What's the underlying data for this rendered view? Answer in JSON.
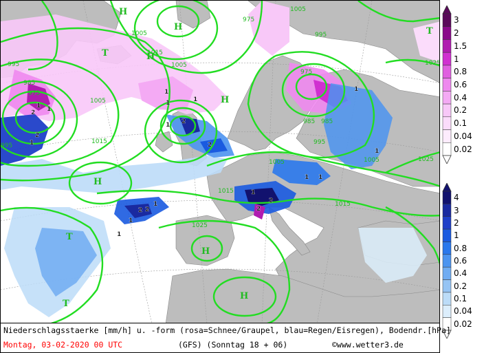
{
  "map": {
    "pressure_labels": [
      "1005",
      "995",
      "1015",
      "985",
      "975",
      "995",
      "1005",
      "975",
      "985",
      "995",
      "1005",
      "1015",
      "1025",
      "1015",
      "1025",
      "995",
      "1005",
      "1005",
      "985",
      "975",
      "1005",
      "1015",
      "1025"
    ],
    "high_markers": [
      "H",
      "H",
      "H",
      "H",
      "H",
      "H",
      "H"
    ],
    "low_markers": [
      "T",
      "T",
      "T",
      "T"
    ],
    "precip_labels": [
      "1",
      "2",
      "1",
      "2",
      "1",
      "2",
      "1",
      "2",
      "1",
      "1",
      "1",
      "1",
      "1",
      "1",
      "2",
      "2",
      "1",
      "1",
      "2",
      "2",
      "1",
      "1",
      "1"
    ]
  },
  "legend_snow": {
    "title": "Schnee/Graupel",
    "ticks": [
      "3",
      "2",
      "1.5",
      "1",
      "0.8",
      "0.6",
      "0.4",
      "0.2",
      "0.1",
      "0.04",
      "0.02"
    ],
    "colors": [
      "#5a0a5a",
      "#8a0a8a",
      "#b01cb0",
      "#d030d0",
      "#e060e0",
      "#ee88ee",
      "#f4aaf4",
      "#f8c8f8",
      "#fbdcfb",
      "#fdecfd",
      "#ffffff"
    ]
  },
  "legend_rain": {
    "title": "Regen/Eisregen",
    "ticks": [
      "4",
      "3",
      "2",
      "1",
      "0.8",
      "0.6",
      "0.4",
      "0.2",
      "0.1",
      "0.04",
      "0.02"
    ],
    "colors": [
      "#12126e",
      "#1a2aa0",
      "#1f3fc8",
      "#1a5ae0",
      "#2a78ec",
      "#4c94f0",
      "#70acf2",
      "#96c4f4",
      "#bcdcf8",
      "#dceefc",
      "#ffffff"
    ]
  },
  "footer": {
    "line1": "Niederschlagsstaerke [mm/h] u. -form (rosa=Schnee/Graupel, blau=Regen/Eisregen), Bodendr.[hPa]",
    "date": "Montag, 03-02-2020  00 UTC",
    "model": "(GFS)  (Sonntag 18 + 06)",
    "copyright": "©www.wetter3.de"
  },
  "colors": {
    "isobar": "#22dd22",
    "land": "#bdbdbd",
    "sea": "#ffffff",
    "snow": "#ee88ee",
    "rain": "#4c94f0"
  }
}
